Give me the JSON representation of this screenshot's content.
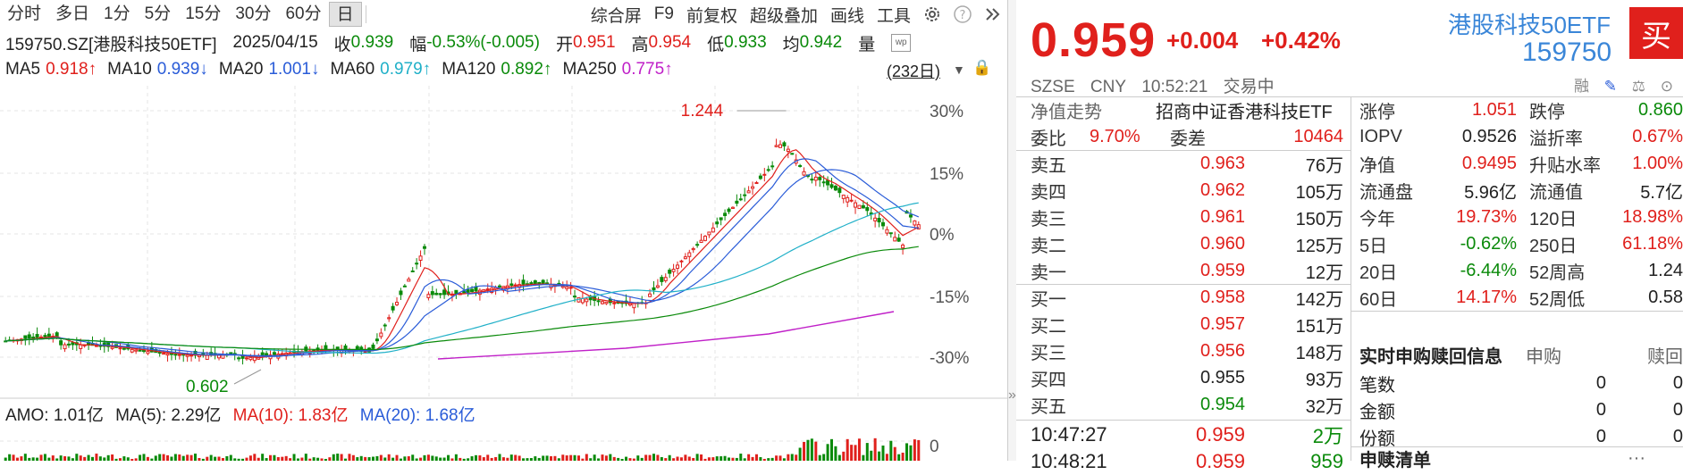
{
  "toolbar": {
    "periods": [
      "分时",
      "多日",
      "1分",
      "5分",
      "15分",
      "30分",
      "60分",
      "日"
    ],
    "active_period": "日",
    "tools": [
      "综合屏",
      "F9",
      "前复权",
      "超级叠加",
      "画线",
      "工具"
    ],
    "icons": [
      "gear-icon",
      "help-icon",
      "double-chevron-right-icon"
    ]
  },
  "info": {
    "code_name": "159750.SZ[港股科技50ETF]",
    "date": "2025/04/15",
    "close_label": "收",
    "close": "0.939",
    "change_label": "幅",
    "change": "-0.53%(-0.005)",
    "open_label": "开",
    "open": "0.951",
    "high_label": "高",
    "high": "0.954",
    "low_label": "低",
    "low": "0.933",
    "avg_label": "均",
    "avg": "0.942",
    "volume_label": "量"
  },
  "ma": [
    {
      "label": "MA5",
      "value": "0.918↑",
      "color": "#e0201c"
    },
    {
      "label": "MA10",
      "value": "0.939↓",
      "color": "#2a5cd8"
    },
    {
      "label": "MA20",
      "value": "1.001↓",
      "color": "#2a5cd8"
    },
    {
      "label": "MA60",
      "value": "0.979↑",
      "color": "#20b0c8"
    },
    {
      "label": "MA120",
      "value": "0.892↑",
      "color": "#0a8a0a"
    },
    {
      "label": "MA250",
      "value": "0.775↑",
      "color": "#c020c8"
    }
  ],
  "range_label": "(232日)",
  "chart": {
    "high_label": "1.244",
    "low_label": "0.602",
    "pct_ticks": [
      "30%",
      "15%",
      "0%",
      "-15%",
      "-30%"
    ],
    "vol_tick": "0"
  },
  "chart_data": {
    "type": "candlestick",
    "y_axis": "percent",
    "ticks": [
      "30%",
      "15%",
      "0%",
      "-15%",
      "-30%"
    ],
    "annotations": [
      {
        "text": "1.244",
        "kind": "max"
      },
      {
        "text": "0.602",
        "kind": "min"
      }
    ],
    "series": [
      "MA5",
      "MA10",
      "MA20",
      "MA60",
      "MA120",
      "MA250"
    ]
  },
  "amo": {
    "label": "AMO: 1.01亿",
    "ma5": "MA(5): 2.29亿",
    "ma10": "MA(10): 1.83亿",
    "ma20": "MA(20): 1.68亿"
  },
  "quote": {
    "price": "0.959",
    "change": "+0.004",
    "pct": "+0.42%",
    "name": "港股科技50ETF",
    "code": "159750",
    "buy_label": "买",
    "exchange": "SZSE",
    "currency": "CNY",
    "time": "10:52:21",
    "status": "交易中",
    "side_icons": [
      "融",
      "✎",
      "⚖",
      "⊙"
    ]
  },
  "nav": {
    "label": "净值走势",
    "index": "招商中证香港科技ETF"
  },
  "weibi": {
    "label": "委比",
    "value": "9.70%",
    "diff_label": "委差",
    "diff": "10464"
  },
  "asks": [
    {
      "label": "卖五",
      "price": "0.963",
      "vol": "76万"
    },
    {
      "label": "卖四",
      "price": "0.962",
      "vol": "105万"
    },
    {
      "label": "卖三",
      "price": "0.961",
      "vol": "150万"
    },
    {
      "label": "卖二",
      "price": "0.960",
      "vol": "125万"
    },
    {
      "label": "卖一",
      "price": "0.959",
      "vol": "12万"
    }
  ],
  "bids": [
    {
      "label": "买一",
      "price": "0.958",
      "vol": "142万"
    },
    {
      "label": "买二",
      "price": "0.957",
      "vol": "151万"
    },
    {
      "label": "买三",
      "price": "0.956",
      "vol": "148万"
    },
    {
      "label": "买四",
      "price": "0.955",
      "vol": "93万"
    },
    {
      "label": "买五",
      "price": "0.954",
      "vol": "32万"
    }
  ],
  "ticks": [
    {
      "time": "10:47:27",
      "price": "0.959",
      "vol": "2万"
    },
    {
      "time": "10:48:21",
      "price": "0.959",
      "vol": "959"
    }
  ],
  "stats": [
    {
      "l1": "涨停",
      "v1": "1.051",
      "c1": "red",
      "l2": "跌停",
      "v2": "0.860",
      "c2": "green"
    },
    {
      "l1": "IOPV",
      "v1": "0.9526",
      "c1": "black",
      "l2": "溢折率",
      "v2": "0.67%",
      "c2": "red"
    },
    {
      "l1": "净值",
      "v1": "0.9495",
      "c1": "red",
      "l2": "升贴水率",
      "v2": "1.00%",
      "c2": "red"
    },
    {
      "l1": "流通盘",
      "v1": "5.96亿",
      "c1": "black",
      "l2": "流通值",
      "v2": "5.7亿",
      "c2": "black"
    },
    {
      "l1": "今年",
      "v1": "19.73%",
      "c1": "red",
      "l2": "120日",
      "v2": "18.98%",
      "c2": "red"
    },
    {
      "l1": "5日",
      "v1": "-0.62%",
      "c1": "green",
      "l2": "250日",
      "v2": "61.18%",
      "c2": "red"
    },
    {
      "l1": "20日",
      "v1": "-6.44%",
      "c1": "green",
      "l2": "52周高",
      "v2": "1.24",
      "c2": "black"
    },
    {
      "l1": "60日",
      "v1": "14.17%",
      "c1": "red",
      "l2": "52周低",
      "v2": "0.58",
      "c2": "black"
    }
  ],
  "redeem": {
    "title": "实时申购赎回信息",
    "col1": "申购",
    "col2": "赎回",
    "rows": [
      {
        "label": "笔数",
        "a": "0",
        "b": "0"
      },
      {
        "label": "金额",
        "a": "0",
        "b": "0"
      },
      {
        "label": "份额",
        "a": "0",
        "b": "0"
      }
    ]
  },
  "redeem_list": {
    "title": "申赎清单",
    "more": "···"
  },
  "collapse_icon": "»"
}
